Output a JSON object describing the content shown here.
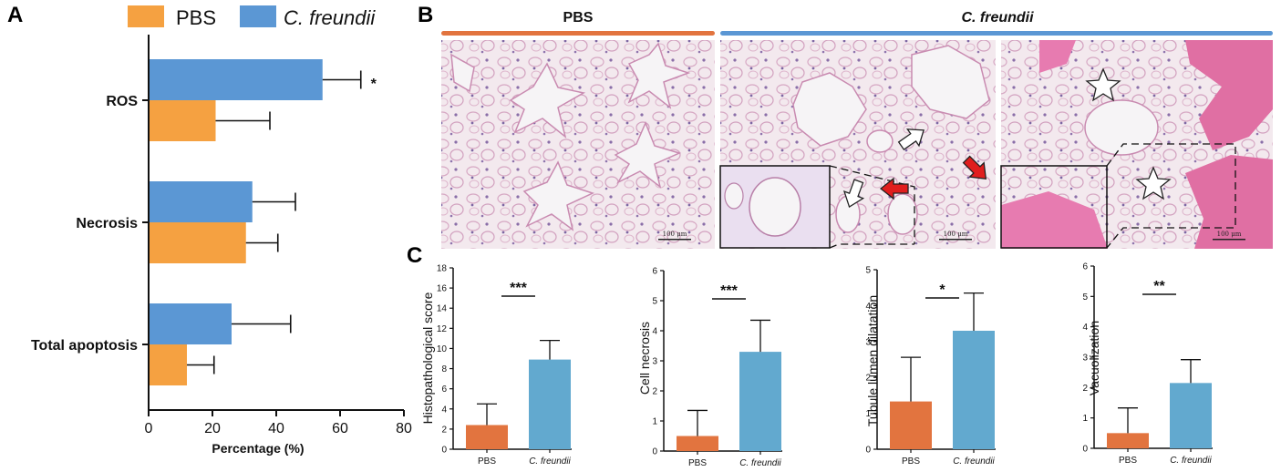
{
  "panel_labels": {
    "a": "A",
    "b": "B",
    "c": "C"
  },
  "colors": {
    "pbs_orange": "#f5a141",
    "cf_blue": "#5b97d4",
    "pbs_dark_orange": "#e2743f",
    "cf_light_blue": "#62a9cf",
    "stain_pink": "#e06fa3",
    "tissue_bg": "#f1e9ee"
  },
  "panel_b": {
    "header_left": "PBS",
    "header_right": "C. freundii",
    "scale_bars": [
      "100 μm",
      "100 μm",
      "100 μm"
    ]
  },
  "chart_data": [
    {
      "type": "bar",
      "orientation": "horizontal",
      "categories": [
        "ROS",
        "Necrosis",
        "Total apoptosis"
      ],
      "series": [
        {
          "name": "PBS",
          "values": [
            21,
            30.5,
            12
          ],
          "errors": [
            17,
            10,
            8.5
          ],
          "color": "#f5a141"
        },
        {
          "name": "C. freundii",
          "values": [
            54.5,
            32.5,
            26
          ],
          "errors": [
            12,
            13.5,
            18.5
          ],
          "color": "#5b97d4"
        }
      ],
      "xlabel": "Percentage (%)",
      "xlim": [
        0,
        80
      ],
      "xticks": [
        "0",
        "20",
        "40",
        "60",
        "80"
      ],
      "legend": "top",
      "annotations": [
        "*"
      ]
    },
    {
      "type": "bar",
      "categories": [
        "PBS",
        "C. freundii"
      ],
      "values": [
        2.4,
        8.9
      ],
      "errors": [
        2.1,
        1.9
      ],
      "ylabel": "Histopathological score",
      "ylim": [
        0,
        18
      ],
      "yticks": [
        "0",
        "2",
        "4",
        "6",
        "8",
        "10",
        "12",
        "14",
        "16",
        "18"
      ],
      "significance": "***"
    },
    {
      "type": "bar",
      "categories": [
        "PBS",
        "C. freundii"
      ],
      "values": [
        0.5,
        3.3
      ],
      "errors": [
        0.85,
        1.05
      ],
      "ylabel": "Cell necrosis",
      "ylim": [
        0,
        6
      ],
      "yticks": [
        "0",
        "1",
        "2",
        "3",
        "4",
        "5",
        "6"
      ],
      "significance": "***"
    },
    {
      "type": "bar",
      "categories": [
        "PBS",
        "C. freundii"
      ],
      "values": [
        1.33,
        3.3
      ],
      "errors": [
        1.23,
        1.05
      ],
      "ylabel": "Tubule lumen dilatation",
      "ylim": [
        0,
        5
      ],
      "yticks": [
        "0",
        "1",
        "2",
        "3",
        "4",
        "5"
      ],
      "significance": "*"
    },
    {
      "type": "bar",
      "categories": [
        "PBS",
        "C. freundii"
      ],
      "values": [
        0.5,
        2.15
      ],
      "errors": [
        0.83,
        0.77
      ],
      "ylabel": "Vacuolization",
      "ylim": [
        0,
        6
      ],
      "yticks": [
        "0",
        "1",
        "2",
        "3",
        "4",
        "5",
        "6"
      ],
      "significance": "**"
    }
  ]
}
